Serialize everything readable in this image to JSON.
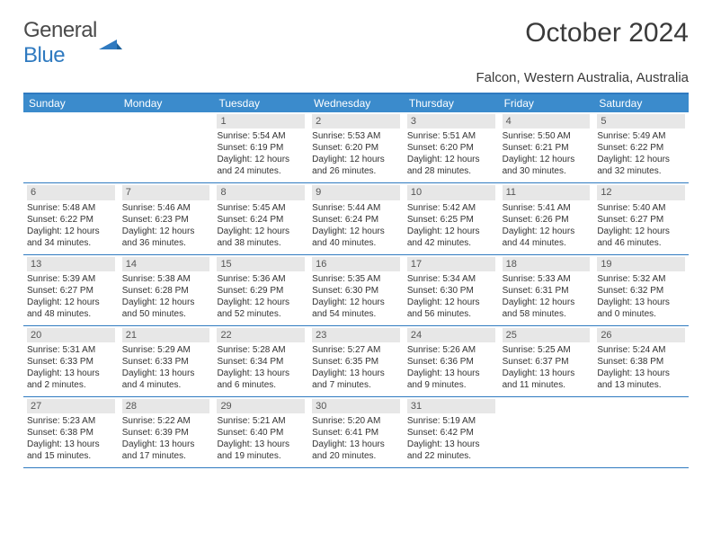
{
  "logo": {
    "text1": "General",
    "text2": "Blue"
  },
  "title": "October 2024",
  "location": "Falcon, Western Australia, Australia",
  "colors": {
    "header_bar": "#3b8bcc",
    "header_border": "#2f7ac0",
    "daynum_bg": "#e7e7e7",
    "text": "#333333",
    "logo_gray": "#4a4a4a",
    "logo_blue": "#2f7ac0",
    "bg": "#ffffff"
  },
  "columns": [
    "Sunday",
    "Monday",
    "Tuesday",
    "Wednesday",
    "Thursday",
    "Friday",
    "Saturday"
  ],
  "weeks": [
    [
      {
        "day": "",
        "sunrise": "",
        "sunset": "",
        "daylight1": "",
        "daylight2": ""
      },
      {
        "day": "",
        "sunrise": "",
        "sunset": "",
        "daylight1": "",
        "daylight2": ""
      },
      {
        "day": "1",
        "sunrise": "Sunrise: 5:54 AM",
        "sunset": "Sunset: 6:19 PM",
        "daylight1": "Daylight: 12 hours",
        "daylight2": "and 24 minutes."
      },
      {
        "day": "2",
        "sunrise": "Sunrise: 5:53 AM",
        "sunset": "Sunset: 6:20 PM",
        "daylight1": "Daylight: 12 hours",
        "daylight2": "and 26 minutes."
      },
      {
        "day": "3",
        "sunrise": "Sunrise: 5:51 AM",
        "sunset": "Sunset: 6:20 PM",
        "daylight1": "Daylight: 12 hours",
        "daylight2": "and 28 minutes."
      },
      {
        "day": "4",
        "sunrise": "Sunrise: 5:50 AM",
        "sunset": "Sunset: 6:21 PM",
        "daylight1": "Daylight: 12 hours",
        "daylight2": "and 30 minutes."
      },
      {
        "day": "5",
        "sunrise": "Sunrise: 5:49 AM",
        "sunset": "Sunset: 6:22 PM",
        "daylight1": "Daylight: 12 hours",
        "daylight2": "and 32 minutes."
      }
    ],
    [
      {
        "day": "6",
        "sunrise": "Sunrise: 5:48 AM",
        "sunset": "Sunset: 6:22 PM",
        "daylight1": "Daylight: 12 hours",
        "daylight2": "and 34 minutes."
      },
      {
        "day": "7",
        "sunrise": "Sunrise: 5:46 AM",
        "sunset": "Sunset: 6:23 PM",
        "daylight1": "Daylight: 12 hours",
        "daylight2": "and 36 minutes."
      },
      {
        "day": "8",
        "sunrise": "Sunrise: 5:45 AM",
        "sunset": "Sunset: 6:24 PM",
        "daylight1": "Daylight: 12 hours",
        "daylight2": "and 38 minutes."
      },
      {
        "day": "9",
        "sunrise": "Sunrise: 5:44 AM",
        "sunset": "Sunset: 6:24 PM",
        "daylight1": "Daylight: 12 hours",
        "daylight2": "and 40 minutes."
      },
      {
        "day": "10",
        "sunrise": "Sunrise: 5:42 AM",
        "sunset": "Sunset: 6:25 PM",
        "daylight1": "Daylight: 12 hours",
        "daylight2": "and 42 minutes."
      },
      {
        "day": "11",
        "sunrise": "Sunrise: 5:41 AM",
        "sunset": "Sunset: 6:26 PM",
        "daylight1": "Daylight: 12 hours",
        "daylight2": "and 44 minutes."
      },
      {
        "day": "12",
        "sunrise": "Sunrise: 5:40 AM",
        "sunset": "Sunset: 6:27 PM",
        "daylight1": "Daylight: 12 hours",
        "daylight2": "and 46 minutes."
      }
    ],
    [
      {
        "day": "13",
        "sunrise": "Sunrise: 5:39 AM",
        "sunset": "Sunset: 6:27 PM",
        "daylight1": "Daylight: 12 hours",
        "daylight2": "and 48 minutes."
      },
      {
        "day": "14",
        "sunrise": "Sunrise: 5:38 AM",
        "sunset": "Sunset: 6:28 PM",
        "daylight1": "Daylight: 12 hours",
        "daylight2": "and 50 minutes."
      },
      {
        "day": "15",
        "sunrise": "Sunrise: 5:36 AM",
        "sunset": "Sunset: 6:29 PM",
        "daylight1": "Daylight: 12 hours",
        "daylight2": "and 52 minutes."
      },
      {
        "day": "16",
        "sunrise": "Sunrise: 5:35 AM",
        "sunset": "Sunset: 6:30 PM",
        "daylight1": "Daylight: 12 hours",
        "daylight2": "and 54 minutes."
      },
      {
        "day": "17",
        "sunrise": "Sunrise: 5:34 AM",
        "sunset": "Sunset: 6:30 PM",
        "daylight1": "Daylight: 12 hours",
        "daylight2": "and 56 minutes."
      },
      {
        "day": "18",
        "sunrise": "Sunrise: 5:33 AM",
        "sunset": "Sunset: 6:31 PM",
        "daylight1": "Daylight: 12 hours",
        "daylight2": "and 58 minutes."
      },
      {
        "day": "19",
        "sunrise": "Sunrise: 5:32 AM",
        "sunset": "Sunset: 6:32 PM",
        "daylight1": "Daylight: 13 hours",
        "daylight2": "and 0 minutes."
      }
    ],
    [
      {
        "day": "20",
        "sunrise": "Sunrise: 5:31 AM",
        "sunset": "Sunset: 6:33 PM",
        "daylight1": "Daylight: 13 hours",
        "daylight2": "and 2 minutes."
      },
      {
        "day": "21",
        "sunrise": "Sunrise: 5:29 AM",
        "sunset": "Sunset: 6:33 PM",
        "daylight1": "Daylight: 13 hours",
        "daylight2": "and 4 minutes."
      },
      {
        "day": "22",
        "sunrise": "Sunrise: 5:28 AM",
        "sunset": "Sunset: 6:34 PM",
        "daylight1": "Daylight: 13 hours",
        "daylight2": "and 6 minutes."
      },
      {
        "day": "23",
        "sunrise": "Sunrise: 5:27 AM",
        "sunset": "Sunset: 6:35 PM",
        "daylight1": "Daylight: 13 hours",
        "daylight2": "and 7 minutes."
      },
      {
        "day": "24",
        "sunrise": "Sunrise: 5:26 AM",
        "sunset": "Sunset: 6:36 PM",
        "daylight1": "Daylight: 13 hours",
        "daylight2": "and 9 minutes."
      },
      {
        "day": "25",
        "sunrise": "Sunrise: 5:25 AM",
        "sunset": "Sunset: 6:37 PM",
        "daylight1": "Daylight: 13 hours",
        "daylight2": "and 11 minutes."
      },
      {
        "day": "26",
        "sunrise": "Sunrise: 5:24 AM",
        "sunset": "Sunset: 6:38 PM",
        "daylight1": "Daylight: 13 hours",
        "daylight2": "and 13 minutes."
      }
    ],
    [
      {
        "day": "27",
        "sunrise": "Sunrise: 5:23 AM",
        "sunset": "Sunset: 6:38 PM",
        "daylight1": "Daylight: 13 hours",
        "daylight2": "and 15 minutes."
      },
      {
        "day": "28",
        "sunrise": "Sunrise: 5:22 AM",
        "sunset": "Sunset: 6:39 PM",
        "daylight1": "Daylight: 13 hours",
        "daylight2": "and 17 minutes."
      },
      {
        "day": "29",
        "sunrise": "Sunrise: 5:21 AM",
        "sunset": "Sunset: 6:40 PM",
        "daylight1": "Daylight: 13 hours",
        "daylight2": "and 19 minutes."
      },
      {
        "day": "30",
        "sunrise": "Sunrise: 5:20 AM",
        "sunset": "Sunset: 6:41 PM",
        "daylight1": "Daylight: 13 hours",
        "daylight2": "and 20 minutes."
      },
      {
        "day": "31",
        "sunrise": "Sunrise: 5:19 AM",
        "sunset": "Sunset: 6:42 PM",
        "daylight1": "Daylight: 13 hours",
        "daylight2": "and 22 minutes."
      },
      {
        "day": "",
        "sunrise": "",
        "sunset": "",
        "daylight1": "",
        "daylight2": ""
      },
      {
        "day": "",
        "sunrise": "",
        "sunset": "",
        "daylight1": "",
        "daylight2": ""
      }
    ]
  ]
}
